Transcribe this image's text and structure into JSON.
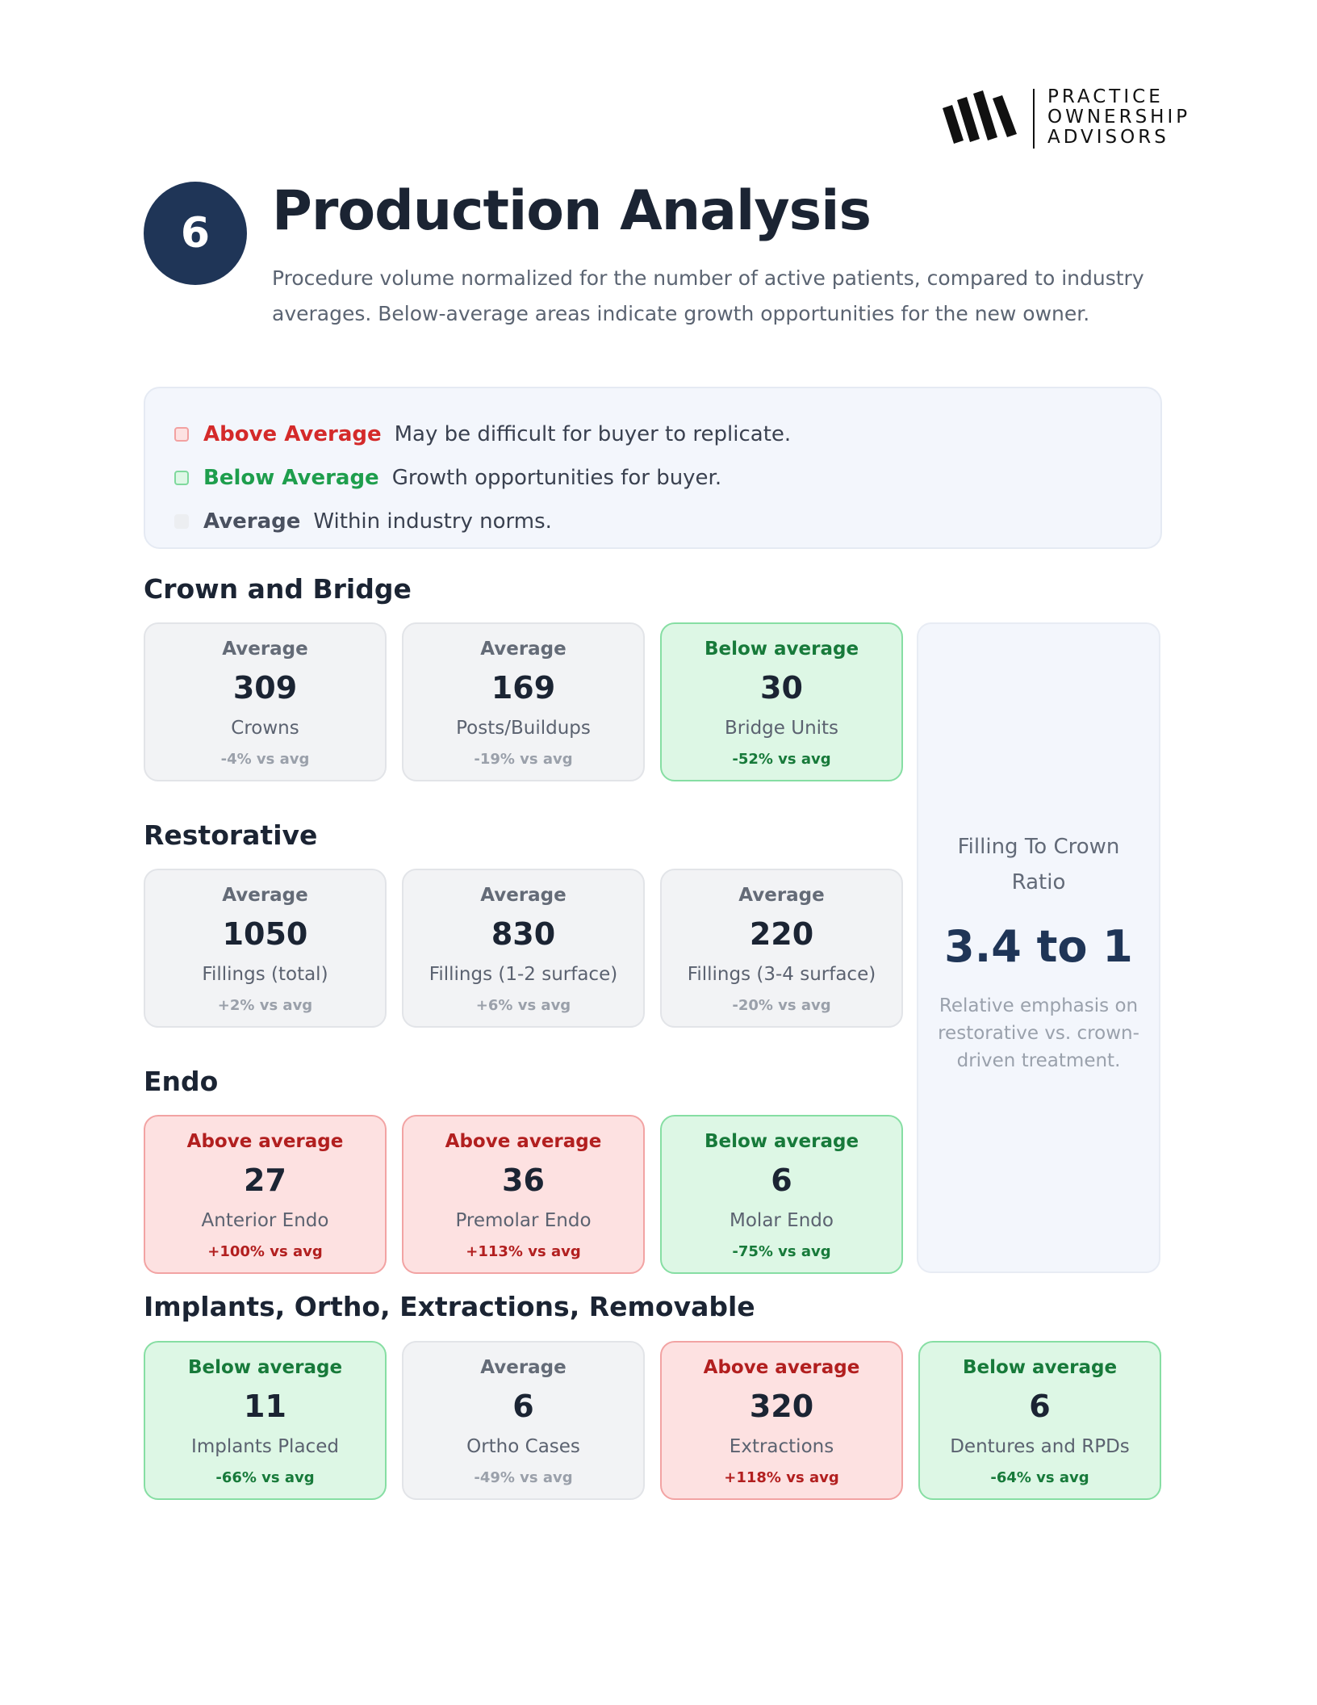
{
  "logo": {
    "lines": [
      "PRACTICE",
      "OWNERSHIP",
      "ADVISORS"
    ]
  },
  "header": {
    "section_number": "6",
    "title": "Production Analysis",
    "subtitle": "Procedure volume normalized for the number of active patients, compared to industry averages. Below-average areas indicate growth opportunities for the new owner."
  },
  "legend": [
    {
      "key": "Above Average",
      "desc": "May be difficult for buyer to replicate."
    },
    {
      "key": "Below Average",
      "desc": "Growth opportunities for buyer."
    },
    {
      "key": "Average",
      "desc": "Within industry norms."
    }
  ],
  "sections": [
    {
      "title": "Crown and Bridge",
      "cards": [
        {
          "status": "Average",
          "value": "309",
          "label": "Crowns",
          "delta": "-4% vs avg"
        },
        {
          "status": "Average",
          "value": "169",
          "label": "Posts/Buildups",
          "delta": "-19% vs avg"
        },
        {
          "status": "Below average",
          "value": "30",
          "label": "Bridge Units",
          "delta": "-52% vs avg"
        }
      ]
    },
    {
      "title": "Restorative",
      "cards": [
        {
          "status": "Average",
          "value": "1050",
          "label": "Fillings (total)",
          "delta": "+2% vs avg"
        },
        {
          "status": "Average",
          "value": "830",
          "label": "Fillings (1-2 surface)",
          "delta": "+6% vs avg"
        },
        {
          "status": "Average",
          "value": "220",
          "label": "Fillings (3-4 surface)",
          "delta": "-20% vs avg"
        }
      ]
    },
    {
      "title": "Endo",
      "cards": [
        {
          "status": "Above average",
          "value": "27",
          "label": "Anterior Endo",
          "delta": "+100% vs avg"
        },
        {
          "status": "Above average",
          "value": "36",
          "label": "Premolar Endo",
          "delta": "+113% vs avg"
        },
        {
          "status": "Below average",
          "value": "6",
          "label": "Molar Endo",
          "delta": "-75% vs avg"
        }
      ]
    },
    {
      "title": "Implants, Ortho, Extractions, Removable",
      "cards": [
        {
          "status": "Below average",
          "value": "11",
          "label": "Implants Placed",
          "delta": "-66% vs avg"
        },
        {
          "status": "Average",
          "value": "6",
          "label": "Ortho Cases",
          "delta": "-49% vs avg"
        },
        {
          "status": "Above average",
          "value": "320",
          "label": "Extractions",
          "delta": "+118% vs avg"
        },
        {
          "status": "Below average",
          "value": "6",
          "label": "Dentures and RPDs",
          "delta": "-64% vs avg"
        }
      ]
    }
  ],
  "ratio": {
    "title": "Filling To Crown Ratio",
    "value": "3.4 to 1",
    "note": "Relative emphasis on restorative vs. crown-driven treatment."
  },
  "colors": {
    "navy": "#1f3557",
    "above_bg": "#fde1e1",
    "above_text": "#b21f1f",
    "below_bg": "#ddf7e5",
    "below_text": "#177a3a",
    "average_bg": "#f2f3f5"
  }
}
